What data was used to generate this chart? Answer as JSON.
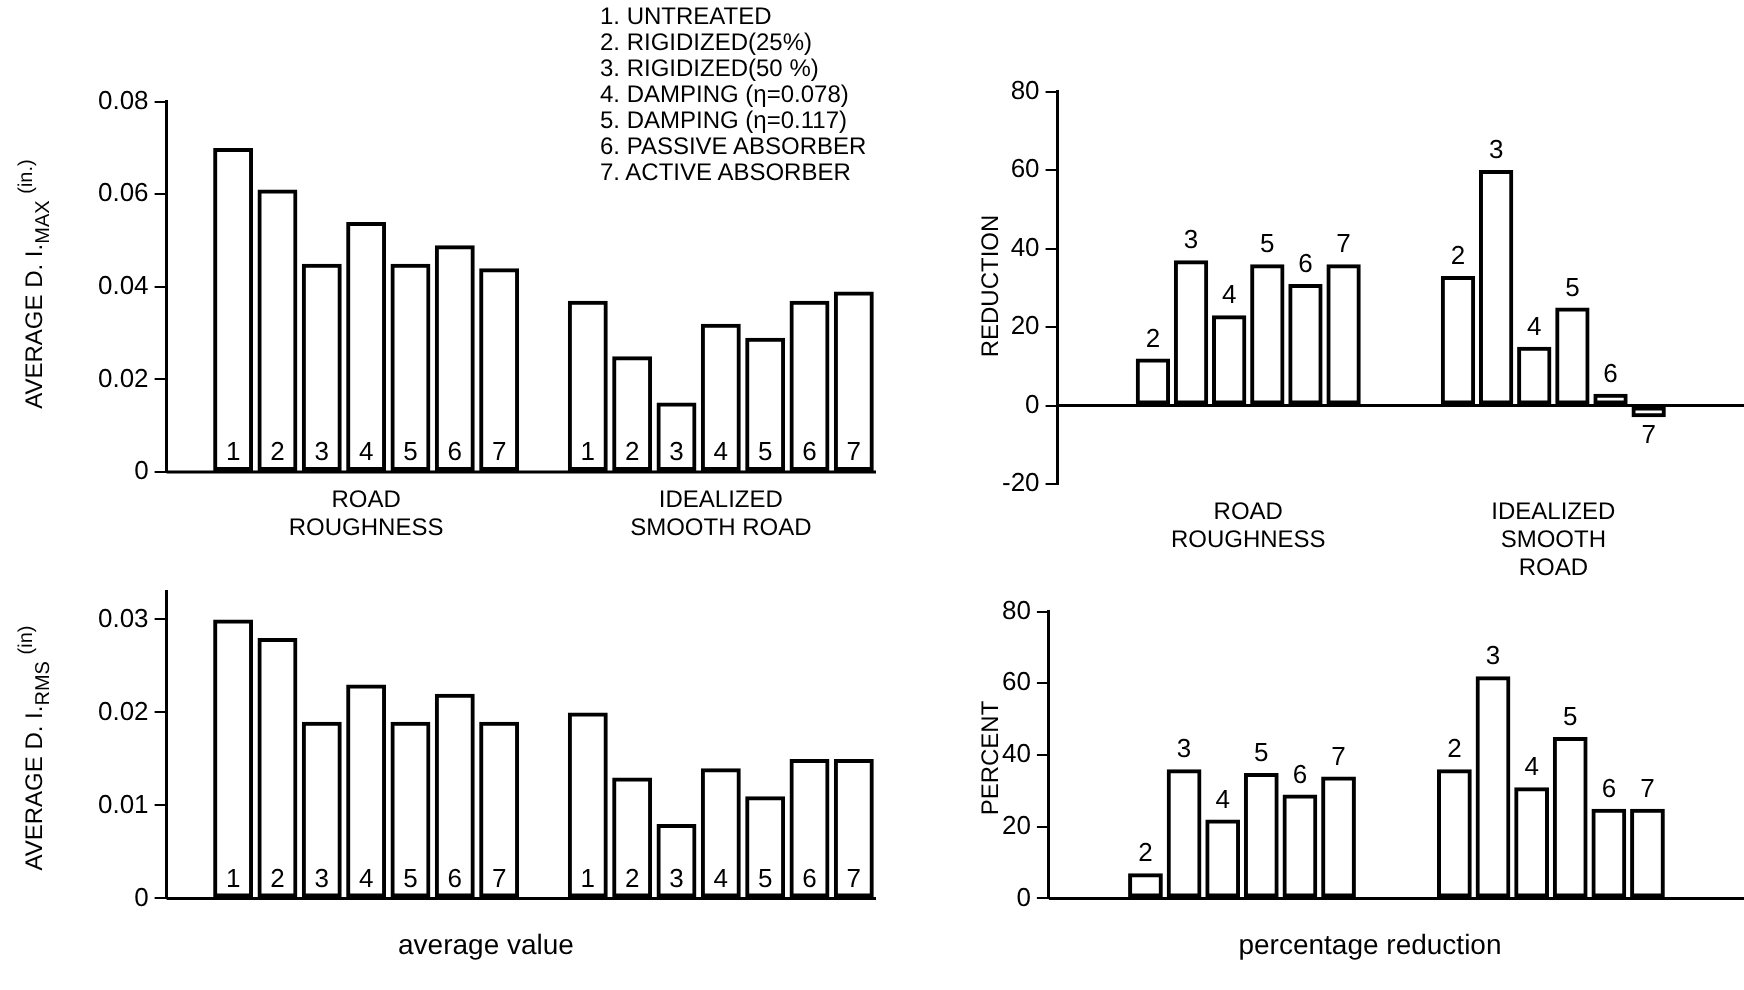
{
  "chart_data": [
    {
      "type": "bar",
      "ylabel": "AVERAGE D. I.$_{MAX}$ $^{(in.)}$",
      "categories": [
        "1",
        "2",
        "3",
        "4",
        "5",
        "6",
        "7",
        null,
        "1",
        "2",
        "3",
        "4",
        "5",
        "6",
        "7"
      ],
      "values": [
        0.07,
        0.061,
        0.045,
        0.054,
        0.045,
        0.049,
        0.044,
        null,
        0.037,
        0.025,
        0.015,
        0.032,
        0.029,
        0.037,
        0.039
      ],
      "color": "#000000",
      "ylim": [
        0,
        0.08
      ],
      "yticks": [
        0,
        0.02,
        0.04,
        0.06,
        0.08
      ],
      "annotations": [
        "ROAD ROUGHNESS",
        "IDEALIZED SMOOTH ROAD"
      ]
    },
    {
      "type": "bar",
      "ylabel": "AVERAGE D. I.$_{RMS}$ $^{(in)}$",
      "xlabel": "average value",
      "categories": [
        "1",
        "2",
        "3",
        "4",
        "5",
        "6",
        "7",
        null,
        "1",
        "2",
        "3",
        "4",
        "5",
        "6",
        "7"
      ],
      "values": [
        0.03,
        0.028,
        0.019,
        0.023,
        0.019,
        0.022,
        0.019,
        null,
        0.02,
        0.013,
        0.008,
        0.014,
        0.011,
        0.015,
        0.015
      ],
      "color": "#000000",
      "ylim": [
        0,
        0.033
      ],
      "yticks": [
        0,
        0.01,
        0.02,
        0.03
      ]
    },
    {
      "type": "bar",
      "ylabel": "REDUCTION",
      "categories": [
        "2",
        "3",
        "4",
        "5",
        "6",
        "7",
        null,
        null,
        "2",
        "3",
        "4",
        "5",
        "6",
        "7"
      ],
      "values": [
        12,
        37,
        23,
        36,
        31,
        36,
        null,
        null,
        33,
        60,
        15,
        25,
        3,
        -3
      ],
      "color": "#000000",
      "ylim": [
        -20,
        80
      ],
      "yticks": [
        -20,
        0,
        20,
        40,
        60,
        80
      ],
      "annotations": [
        "ROAD ROUGHNESS",
        "IDEALIZED SMOOTH ROAD"
      ]
    },
    {
      "type": "bar",
      "ylabel": "PERCENT",
      "xlabel": "percentage reduction",
      "categories": [
        "2",
        "3",
        "4",
        "5",
        "6",
        "7",
        null,
        null,
        "2",
        "3",
        "4",
        "5",
        "6",
        "7"
      ],
      "values": [
        7,
        36,
        22,
        35,
        29,
        34,
        null,
        null,
        36,
        62,
        31,
        45,
        25,
        25
      ],
      "color": "#000000",
      "ylim": [
        0,
        80
      ],
      "yticks": [
        0,
        20,
        40,
        60,
        80
      ]
    },
    {
      "type": "other",
      "annotations": [
        "1. UNTREATED",
        "2. RIGIDIZED(25%)",
        "3. RIGIDIZED(50 %)",
        "4. DAMPING (η=0.078)",
        "5. DAMPING (η=0.117)",
        "6. PASSIVE ABSORBER",
        "7. ACTIVE ABSORBER"
      ]
    }
  ]
}
